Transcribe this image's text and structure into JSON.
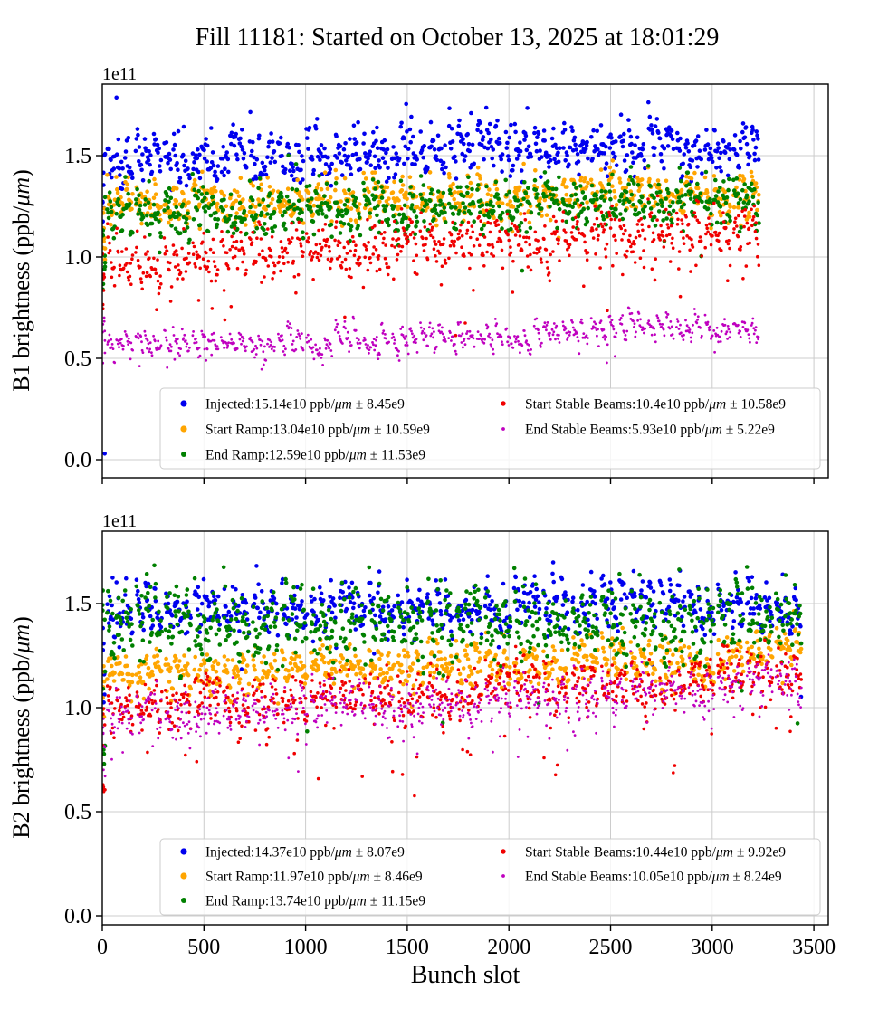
{
  "title": "Fill 11181: Started on October 13, 2025 at 18:01:29",
  "xlabel": "Bunch slot",
  "chart_data": [
    {
      "type": "scatter",
      "subplot": "top",
      "ylabel_pre": "B1 brightness (ppb/",
      "ylabel_mu": "μm",
      "ylabel_post": ")",
      "offset_text": "1e11",
      "xlabel": "",
      "xticks": [
        0,
        500,
        1000,
        1500,
        2000,
        2500,
        3000,
        3500
      ],
      "ytick_labels": [
        "0.0",
        "0.5",
        "1.0",
        "1.5"
      ],
      "ytick_values": [
        0,
        0.5,
        1.0,
        1.5
      ],
      "xlim": [
        -15,
        3570
      ],
      "ylim": [
        -0.09,
        1.85
      ],
      "grid": true,
      "legend": {
        "location": "lower center",
        "columns": 2
      },
      "units_note": "y values in 1e11 ppb/μm",
      "structure": {
        "slot_start": 25,
        "group_spacing": 140,
        "groups": 23,
        "trains_per_group": 3,
        "train_span_slots": 36,
        "train_gap_slots": 8,
        "points_per_train": 11
      },
      "series": [
        {
          "name": "Injected",
          "label": "Injected:15.14e10 ppb/μm ± 8.45e9",
          "mean_e10": 15.14,
          "err_e9": 8.45,
          "color": "#0000ee",
          "marker_r": 2.3,
          "legend_r": 3.6,
          "gen": {
            "c0": 1.47,
            "c1": 1.555,
            "std": 0.042,
            "amp": 0.16,
            "arch": 0.05,
            "spike_p": 0.06,
            "spike": 0.12,
            "drop_p": 0.01,
            "drop": 0.12,
            "end_rise": 0,
            "start_lo": 1.13,
            "start_hi": 1.55,
            "start_n": 9
          }
        },
        {
          "name": "Start Ramp",
          "label": "Start Ramp:13.04e10 ppb/μm ± 10.59e9",
          "mean_e10": 13.04,
          "err_e9": 10.59,
          "color": "#ffa500",
          "marker_r": 2.3,
          "legend_r": 3.6,
          "gen": {
            "c0": 1.275,
            "c1": 1.3,
            "std": 0.038,
            "amp": 0.14,
            "arch": 0.04,
            "spike_p": 0.02,
            "spike": 0.08,
            "drop_p": 0.02,
            "drop": 0.12,
            "end_rise": 0.17,
            "start_lo": 0.88,
            "start_hi": 1.28,
            "start_n": 8
          }
        },
        {
          "name": "End Ramp",
          "label": "End Ramp:12.59e10 ppb/μm ± 11.53e9",
          "mean_e10": 12.59,
          "err_e9": 11.53,
          "color": "#008000",
          "marker_r": 2.3,
          "legend_r": 3.0,
          "gen": {
            "c0": 1.195,
            "c1": 1.3,
            "std": 0.05,
            "amp": 0.15,
            "arch": 0.04,
            "spike_p": 0.03,
            "spike": 0.1,
            "drop_p": 0.02,
            "drop": 0.15,
            "end_rise": 0,
            "start_lo": 0.77,
            "start_hi": 1.3,
            "start_n": 9
          }
        },
        {
          "name": "Start Stable Beams",
          "label": "Start Stable Beams:10.4e10 ppb/μm ± 10.58e9",
          "mean_e10": 10.4,
          "err_e9": 10.58,
          "color": "#f00000",
          "marker_r": 1.8,
          "legend_r": 2.7,
          "gen": {
            "c0": 0.975,
            "c1": 1.16,
            "std": 0.05,
            "amp": 0.16,
            "arch": 0.04,
            "spike_p": 0,
            "spike": 0,
            "drop_p": 0.05,
            "drop": 0.22,
            "end_rise": 0,
            "start_lo": 0.74,
            "start_hi": 1.05,
            "start_n": 8
          }
        },
        {
          "name": "End Stable Beams",
          "label": "End Stable Beams:5.93e10 ppb/μm ± 5.22e9",
          "mean_e10": 5.93,
          "err_e9": 5.22,
          "color": "#bf00bf",
          "marker_r": 1.4,
          "legend_r": 1.9,
          "gen": {
            "c0": 0.55,
            "c1": 0.655,
            "std": 0.02,
            "amp": 0.1,
            "arch": 0.02,
            "spike_p": 0,
            "spike": 0,
            "drop_p": 0.03,
            "drop": 0.09,
            "end_rise": 0,
            "start_lo": 0.44,
            "start_hi": 0.72,
            "start_n": 8
          }
        }
      ],
      "extra_points": [
        {
          "series": 0,
          "slot": 12,
          "value": 0.03
        }
      ]
    },
    {
      "type": "scatter",
      "subplot": "bottom",
      "ylabel_pre": "B2 brightness (ppb/",
      "ylabel_mu": "μm",
      "ylabel_post": ")",
      "offset_text": "1e11",
      "xlabel": "Bunch slot",
      "xticks": [
        0,
        500,
        1000,
        1500,
        2000,
        2500,
        3000,
        3500
      ],
      "ytick_labels": [
        "0.0",
        "0.5",
        "1.0",
        "1.5"
      ],
      "ytick_values": [
        0,
        0.5,
        1.0,
        1.5
      ],
      "xlim": [
        -15,
        3570
      ],
      "ylim": [
        -0.04,
        1.85
      ],
      "grid": true,
      "legend": {
        "location": "lower center",
        "columns": 2
      },
      "units_note": "y values in 1e11 ppb/μm",
      "structure": {
        "slot_start": 25,
        "group_spacing": 143,
        "groups": 24,
        "trains_per_group": 3,
        "train_span_slots": 36,
        "train_gap_slots": 8,
        "points_per_train": 11
      },
      "series": [
        {
          "name": "Injected",
          "label": "Injected:14.37e10 ppb/μm ± 8.07e9",
          "mean_e10": 14.37,
          "err_e9": 8.07,
          "color": "#0000ee",
          "marker_r": 2.3,
          "legend_r": 3.6,
          "gen": {
            "c0": 1.465,
            "c1": 1.5,
            "std": 0.04,
            "amp": 0.17,
            "arch": 0.05,
            "spike_p": 0.04,
            "spike": 0.1,
            "drop_p": 0.02,
            "drop": 0.25,
            "end_rise": 0,
            "start_lo": 0.98,
            "start_hi": 1.42,
            "start_n": 9
          }
        },
        {
          "name": "Start Ramp",
          "label": "Start Ramp:11.97e10 ppb/μm ± 8.46e9",
          "mean_e10": 11.97,
          "err_e9": 8.46,
          "color": "#ffa500",
          "marker_r": 2.3,
          "legend_r": 3.6,
          "gen": {
            "c0": 1.165,
            "c1": 1.23,
            "std": 0.035,
            "amp": 0.13,
            "arch": 0.04,
            "spike_p": 0.02,
            "spike": 0.07,
            "drop_p": 0.02,
            "drop": 0.12,
            "end_rise": 0.13,
            "start_lo": 0.93,
            "start_hi": 1.2,
            "start_n": 8
          }
        },
        {
          "name": "End Ramp",
          "label": "End Ramp:13.74e10 ppb/μm ± 11.15e9",
          "mean_e10": 13.74,
          "err_e9": 11.15,
          "color": "#008000",
          "marker_r": 2.3,
          "legend_r": 3.0,
          "gen": {
            "c0": 1.4,
            "c1": 1.41,
            "std": 0.07,
            "amp": 0.18,
            "arch": 0.05,
            "spike_p": 0.06,
            "spike": 0.13,
            "drop_p": 0.03,
            "drop": 0.3,
            "end_rise": 0,
            "start_lo": 0.7,
            "start_hi": 1.6,
            "start_n": 10
          }
        },
        {
          "name": "Start Stable Beams",
          "label": "Start Stable Beams:10.44e10 ppb/μm ± 9.92e9",
          "mean_e10": 10.44,
          "err_e9": 9.92,
          "color": "#f00000",
          "marker_r": 1.8,
          "legend_r": 2.7,
          "gen": {
            "c0": 1.0,
            "c1": 1.15,
            "std": 0.052,
            "amp": 0.15,
            "arch": 0.04,
            "spike_p": 0,
            "spike": 0,
            "drop_p": 0.05,
            "drop": 0.25,
            "end_rise": 0,
            "start_lo": 0.57,
            "start_hi": 1.1,
            "start_n": 9
          }
        },
        {
          "name": "End Stable Beams",
          "label": "End Stable Beams:10.05e10 ppb/μm ± 8.24e9",
          "mean_e10": 10.05,
          "err_e9": 8.24,
          "color": "#bf00bf",
          "marker_r": 1.4,
          "legend_r": 1.9,
          "gen": {
            "c0": 0.965,
            "c1": 1.1,
            "std": 0.048,
            "amp": 0.13,
            "arch": 0.03,
            "spike_p": 0,
            "spike": 0,
            "drop_p": 0.04,
            "drop": 0.18,
            "end_rise": 0,
            "start_lo": 0.6,
            "start_hi": 1.05,
            "start_n": 8
          }
        }
      ],
      "extra_points": []
    }
  ]
}
